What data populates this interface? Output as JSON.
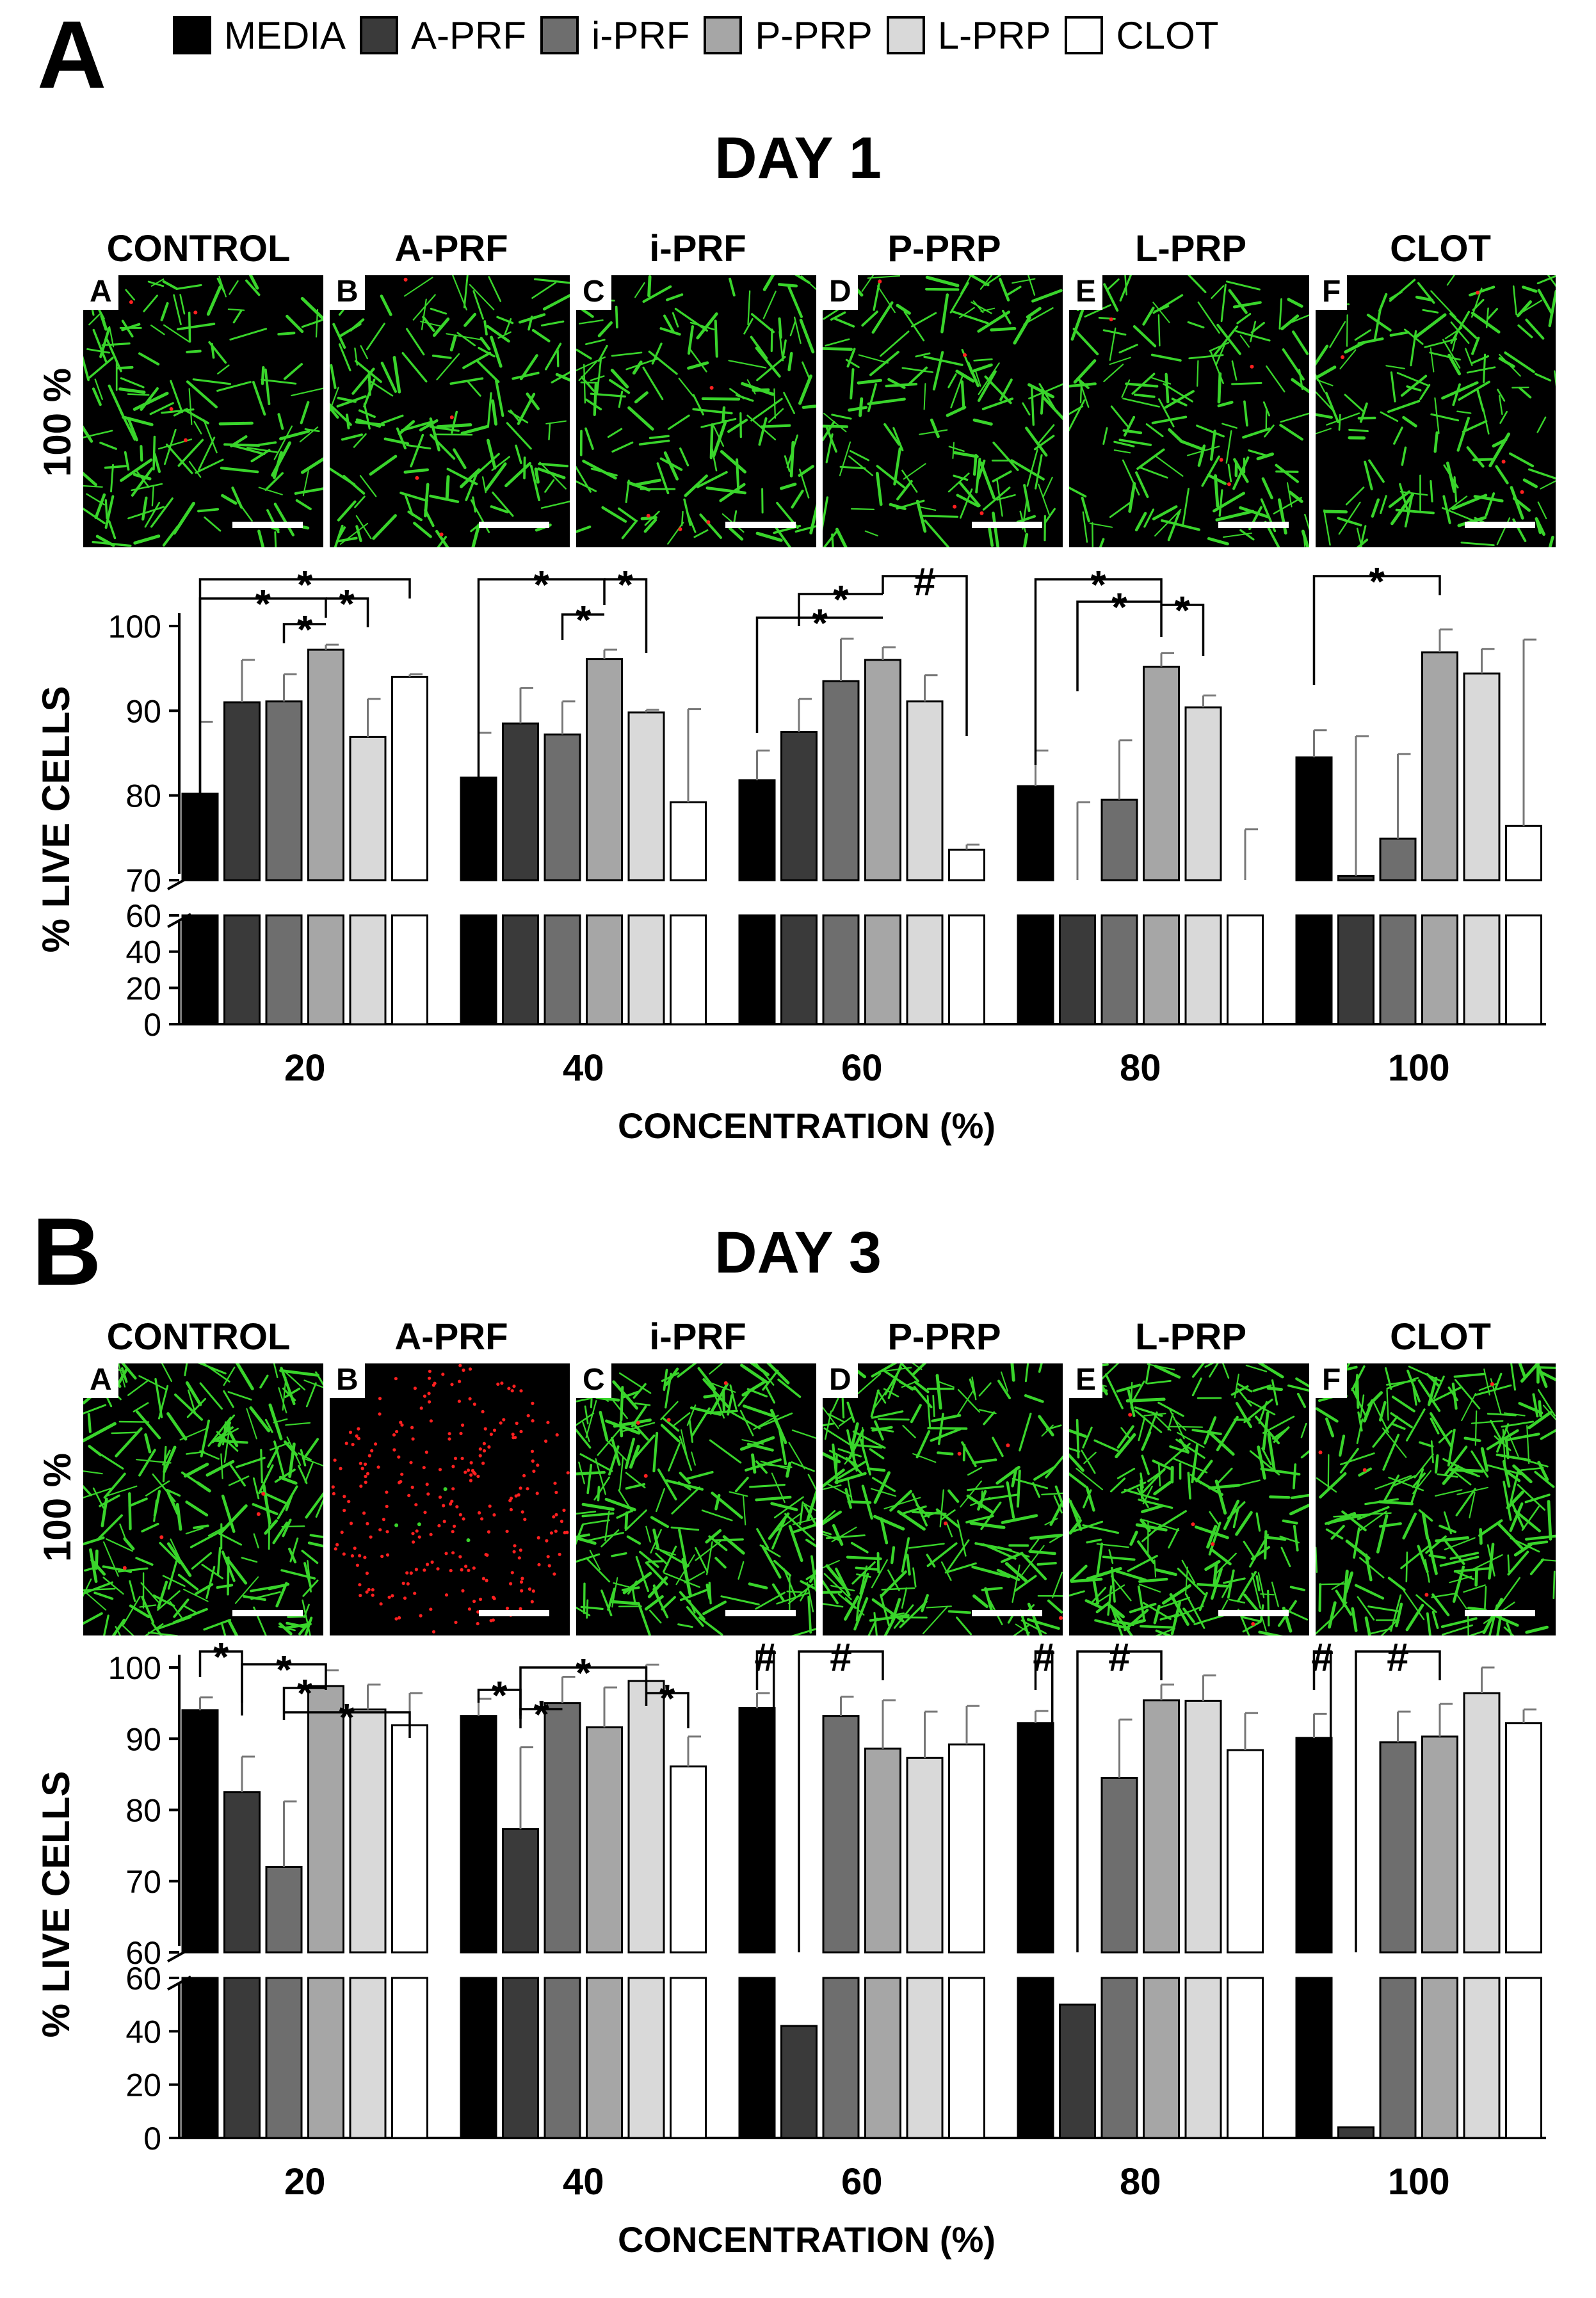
{
  "panel_labels": [
    "A",
    "B"
  ],
  "legend": [
    {
      "label": "MEDIA",
      "color": "#000000"
    },
    {
      "label": "A-PRF",
      "color": "#3a3a3a"
    },
    {
      "label": "i-PRF",
      "color": "#6e6e6e"
    },
    {
      "label": "P-PRP",
      "color": "#a6a6a6"
    },
    {
      "label": "L-PRP",
      "color": "#d9d9d9"
    },
    {
      "label": "CLOT",
      "color": "#ffffff"
    }
  ],
  "column_titles": [
    "CONTROL",
    "A-PRF",
    "i-PRF",
    "P-PRP",
    "L-PRP",
    "CLOT"
  ],
  "image_letters": [
    "A",
    "B",
    "C",
    "D",
    "E",
    "F"
  ],
  "row_label": "100 %",
  "days": [
    {
      "title": "DAY 1"
    },
    {
      "title": "DAY 3"
    }
  ],
  "chart_data": [
    {
      "type": "bar",
      "title": "DAY 1",
      "xlabel": "CONCENTRATION (%)",
      "ylabel": "% LIVE CELLS",
      "categories": [
        "20",
        "40",
        "60",
        "80",
        "100"
      ],
      "y_axis": "broken: lower segment 0–60, upper segment 70–100",
      "upper_ticks": [
        "70",
        "80",
        "90",
        "100"
      ],
      "lower_ticks": [
        "0",
        "20",
        "40",
        "60"
      ],
      "series": [
        {
          "name": "MEDIA",
          "values": [
            80.2,
            82.1,
            81.8,
            81.1,
            84.5
          ],
          "errors": [
            8.5,
            5.3,
            3.5,
            4.2,
            3.2
          ]
        },
        {
          "name": "A-PRF",
          "values": [
            91.0,
            88.5,
            87.5,
            60.0,
            70.5
          ],
          "errors": [
            5.0,
            4.2,
            3.9,
            19.2,
            16.5
          ]
        },
        {
          "name": "i-PRF",
          "values": [
            91.1,
            87.2,
            93.5,
            79.5,
            74.9
          ],
          "errors": [
            3.2,
            3.9,
            5.0,
            7.0,
            10.0
          ]
        },
        {
          "name": "P-PRP",
          "values": [
            97.2,
            96.1,
            96.0,
            95.2,
            96.9
          ],
          "errors": [
            0.6,
            1.1,
            1.5,
            1.6,
            2.7
          ]
        },
        {
          "name": "L-PRP",
          "values": [
            86.9,
            89.8,
            91.1,
            90.4,
            94.4
          ],
          "errors": [
            4.5,
            0.3,
            3.1,
            1.4,
            2.9
          ]
        },
        {
          "name": "CLOT",
          "values": [
            94.0,
            79.2,
            73.6,
            62.0,
            76.4
          ],
          "errors": [
            0.3,
            11.0,
            0.6,
            14.0,
            22.0
          ]
        }
      ],
      "annotations": [
        "*",
        "*",
        "*",
        "*",
        "*",
        "*",
        "*",
        "#",
        "*",
        "*",
        "*",
        "*",
        "*"
      ]
    },
    {
      "type": "bar",
      "title": "DAY 3",
      "xlabel": "CONCENTRATION (%)",
      "ylabel": "% LIVE CELLS",
      "categories": [
        "20",
        "40",
        "60",
        "80",
        "100"
      ],
      "y_axis": "broken: lower segment 0–60, upper segment 60–100",
      "upper_ticks": [
        "60",
        "70",
        "80",
        "90",
        "100"
      ],
      "lower_ticks": [
        "0",
        "20",
        "40",
        "60"
      ],
      "series": [
        {
          "name": "MEDIA",
          "values": [
            94.0,
            93.2,
            94.3,
            92.2,
            90.1
          ],
          "errors": [
            1.8,
            2.4,
            2.1,
            1.7,
            3.4
          ]
        },
        {
          "name": "A-PRF",
          "values": [
            82.5,
            77.3,
            42.0,
            50.0,
            4.0
          ],
          "errors": [
            5.0,
            11.5,
            6.5,
            5.0,
            3.5
          ]
        },
        {
          "name": "i-PRF",
          "values": [
            72.0,
            95.0,
            93.2,
            84.5,
            89.5
          ],
          "errors": [
            9.2,
            3.7,
            2.7,
            8.2,
            4.3
          ]
        },
        {
          "name": "P-PRP",
          "values": [
            97.4,
            91.6,
            88.6,
            95.4,
            90.3
          ],
          "errors": [
            2.2,
            5.6,
            6.8,
            2.2,
            4.6
          ]
        },
        {
          "name": "L-PRP",
          "values": [
            94.1,
            98.1,
            87.3,
            95.3,
            96.4
          ],
          "errors": [
            3.5,
            2.3,
            6.5,
            3.6,
            3.6
          ]
        },
        {
          "name": "CLOT",
          "values": [
            91.9,
            86.1,
            89.2,
            88.4,
            92.2
          ],
          "errors": [
            4.5,
            4.2,
            5.4,
            5.2,
            1.9
          ]
        }
      ],
      "annotations": [
        "*",
        "*",
        "*",
        "*",
        "*",
        "*",
        "*",
        "*",
        "#",
        "#",
        "#",
        "#",
        "#",
        "#"
      ]
    }
  ]
}
